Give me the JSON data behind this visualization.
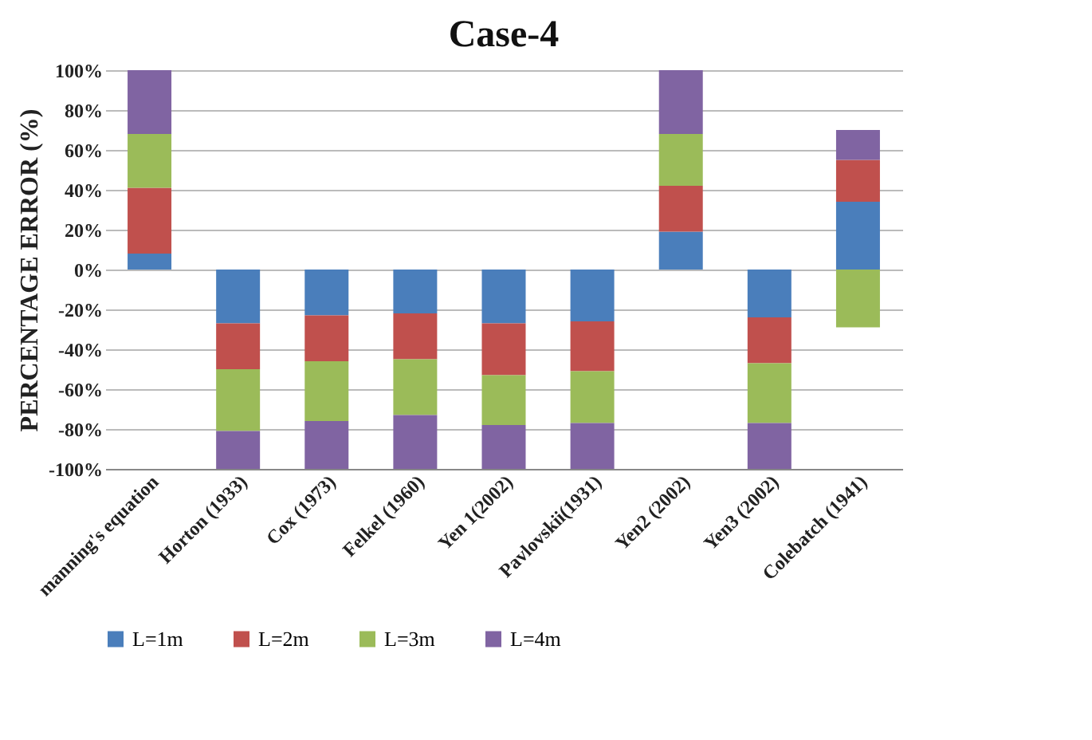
{
  "chart_data": {
    "type": "bar",
    "stacked": true,
    "title": "Case-4",
    "ylabel": "PERCENTAGE ERROR (%)",
    "categories": [
      "manning's equation",
      "Horton (1933)",
      "Cox (1973)",
      "Felkel (1960)",
      "Yen 1(2002)",
      "Pavlovskii(1931)",
      "Yen2 (2002)",
      "Yen3 (2002)",
      "Colebatch (1941)"
    ],
    "series": [
      {
        "name": "L=1m",
        "color": "#4a7ebb",
        "values": [
          8,
          -27,
          -23,
          -22,
          -27,
          -26,
          19,
          -24,
          34
        ]
      },
      {
        "name": "L=2m",
        "color": "#c0504d",
        "values": [
          33,
          -23,
          -23,
          -23,
          -26,
          -25,
          23,
          -23,
          21
        ]
      },
      {
        "name": "L=3m",
        "color": "#9bbb59",
        "values": [
          27,
          -31,
          -30,
          -28,
          -25,
          -26,
          26,
          -30,
          -29
        ]
      },
      {
        "name": "L=4m",
        "color": "#8064a2",
        "values": [
          32,
          -19,
          -24,
          -27,
          -22,
          -23,
          32,
          -23,
          15
        ]
      }
    ],
    "ylim": [
      -100,
      100
    ],
    "yticks": [
      {
        "value": -100,
        "label": "-100%"
      },
      {
        "value": -80,
        "label": "-80%"
      },
      {
        "value": -60,
        "label": "-60%"
      },
      {
        "value": -40,
        "label": "-40%"
      },
      {
        "value": -20,
        "label": "-20%"
      },
      {
        "value": 0,
        "label": "0%"
      },
      {
        "value": 20,
        "label": "20%"
      },
      {
        "value": 40,
        "label": "40%"
      },
      {
        "value": 60,
        "label": "60%"
      },
      {
        "value": 80,
        "label": "80%"
      },
      {
        "value": 100,
        "label": "100%"
      }
    ],
    "grid": "y",
    "legend": "bottom"
  }
}
